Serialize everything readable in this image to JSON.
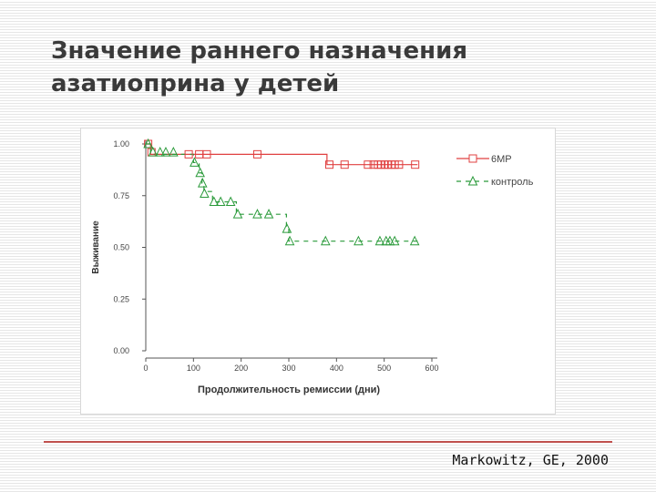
{
  "slide": {
    "title_line1": "Значение раннего назначения",
    "title_line2": "азатиоприна у детей",
    "citation": "Markowitz, GE, 2000"
  },
  "colors": {
    "accent_line": "#c0504d",
    "series_6mp": "#e04040",
    "series_control": "#2a9a3a",
    "title_text": "#3a3a3a"
  },
  "chart_data": {
    "type": "line",
    "title": "",
    "xlabel": "Продолжительность ремиссии (дни)",
    "ylabel": "Выживание",
    "xlim": [
      0,
      600
    ],
    "ylim": [
      0,
      1
    ],
    "xticks": [
      0,
      100,
      200,
      300,
      400,
      500,
      600
    ],
    "xtick_labels": [
      "0",
      "100",
      "200",
      "300",
      "400",
      "500",
      "600"
    ],
    "yticks": [
      0,
      0.25,
      0.5,
      0.75,
      1.0
    ],
    "ytick_labels": [
      "0.00",
      "0.25",
      "0.50",
      "0.75",
      "1.00"
    ],
    "legend_position": "right",
    "series": [
      {
        "name": "6MP",
        "style": "solid",
        "marker": "square",
        "step_points": [
          [
            0,
            1.0
          ],
          [
            10,
            1.0
          ],
          [
            10,
            0.95
          ],
          [
            380,
            0.95
          ],
          [
            380,
            0.9
          ],
          [
            570,
            0.9
          ]
        ],
        "markers": [
          [
            5,
            1.0
          ],
          [
            12,
            0.96
          ],
          [
            90,
            0.95
          ],
          [
            112,
            0.95
          ],
          [
            128,
            0.95
          ],
          [
            234,
            0.95
          ],
          [
            385,
            0.9
          ],
          [
            417,
            0.9
          ],
          [
            466,
            0.9
          ],
          [
            478,
            0.9
          ],
          [
            487,
            0.9
          ],
          [
            494,
            0.9
          ],
          [
            501,
            0.9
          ],
          [
            508,
            0.9
          ],
          [
            515,
            0.9
          ],
          [
            522,
            0.9
          ],
          [
            531,
            0.9
          ],
          [
            565,
            0.9
          ]
        ]
      },
      {
        "name": "контроль",
        "style": "dashed",
        "marker": "triangle",
        "step_points": [
          [
            0,
            1.0
          ],
          [
            10,
            1.0
          ],
          [
            10,
            0.95
          ],
          [
            100,
            0.95
          ],
          [
            100,
            0.91
          ],
          [
            112,
            0.91
          ],
          [
            112,
            0.86
          ],
          [
            118,
            0.86
          ],
          [
            118,
            0.81
          ],
          [
            122,
            0.81
          ],
          [
            122,
            0.77
          ],
          [
            140,
            0.77
          ],
          [
            140,
            0.72
          ],
          [
            190,
            0.72
          ],
          [
            190,
            0.66
          ],
          [
            295,
            0.66
          ],
          [
            295,
            0.59
          ],
          [
            300,
            0.59
          ],
          [
            300,
            0.53
          ],
          [
            570,
            0.53
          ]
        ],
        "markers": [
          [
            5,
            1.0
          ],
          [
            15,
            0.96
          ],
          [
            30,
            0.96
          ],
          [
            42,
            0.96
          ],
          [
            58,
            0.96
          ],
          [
            102,
            0.91
          ],
          [
            114,
            0.86
          ],
          [
            119,
            0.81
          ],
          [
            123,
            0.76
          ],
          [
            143,
            0.72
          ],
          [
            157,
            0.72
          ],
          [
            178,
            0.72
          ],
          [
            193,
            0.66
          ],
          [
            234,
            0.66
          ],
          [
            258,
            0.66
          ],
          [
            296,
            0.59
          ],
          [
            302,
            0.53
          ],
          [
            377,
            0.53
          ],
          [
            446,
            0.53
          ],
          [
            491,
            0.53
          ],
          [
            504,
            0.53
          ],
          [
            512,
            0.53
          ],
          [
            522,
            0.53
          ],
          [
            564,
            0.53
          ]
        ]
      }
    ]
  }
}
